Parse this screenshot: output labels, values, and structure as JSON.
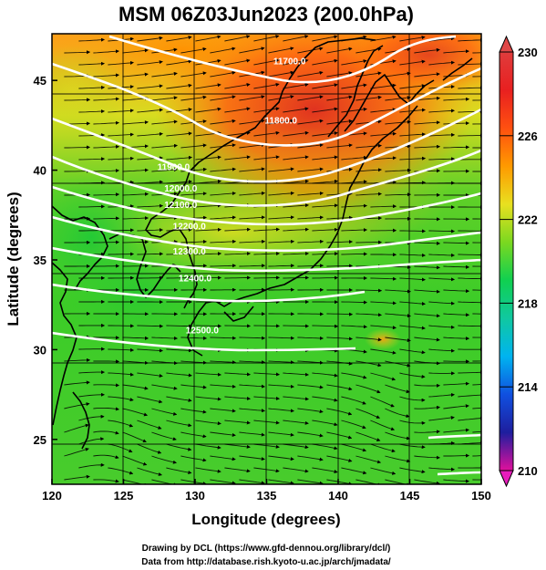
{
  "title": "MSM 06Z03Jun2023 (200.0hPa)",
  "xlabel": "Longitude (degrees)",
  "ylabel": "Latitude  (degrees)",
  "credit_line1": "Drawing by DCL (https://www.gfd-dennou.org/library/dcl/)",
  "credit_line2": "Data from http://database.rish.kyoto-u.ac.jp/arch/jmadata/",
  "x_ticks": [
    {
      "value": 120,
      "label": "120"
    },
    {
      "value": 125,
      "label": "125"
    },
    {
      "value": 130,
      "label": "130"
    },
    {
      "value": 135,
      "label": "135"
    },
    {
      "value": 140,
      "label": "140"
    },
    {
      "value": 145,
      "label": "145"
    },
    {
      "value": 150,
      "label": "150"
    }
  ],
  "y_ticks": [
    {
      "value": 25,
      "label": "25"
    },
    {
      "value": 30,
      "label": "30"
    },
    {
      "value": 35,
      "label": "35"
    },
    {
      "value": 40,
      "label": "40"
    },
    {
      "value": 45,
      "label": "45"
    }
  ],
  "colorbar": {
    "range": [
      210,
      230
    ],
    "ticks": [
      {
        "value": 230,
        "label": "230"
      },
      {
        "value": 226,
        "label": "226"
      },
      {
        "value": 222,
        "label": "222"
      },
      {
        "value": 218,
        "label": "218"
      },
      {
        "value": 214,
        "label": "214"
      },
      {
        "value": 210,
        "label": "210"
      }
    ],
    "stops": [
      "#e0109c",
      "#1e1e9e",
      "#1050e0",
      "#00b4f0",
      "#10c8a0",
      "#10d050",
      "#7ad820",
      "#e8e020",
      "#ff9a00",
      "#ff5010",
      "#e82020",
      "#e03c3c"
    ]
  },
  "contour_labels": [
    {
      "text": "11700.0",
      "lon": 136.6,
      "lat": 45.9
    },
    {
      "text": "11800.0",
      "lon": 136.0,
      "lat": 42.6
    },
    {
      "text": "11900.0",
      "lon": 128.5,
      "lat": 40.0
    },
    {
      "text": "12000.0",
      "lon": 129.0,
      "lat": 38.8
    },
    {
      "text": "12100.0",
      "lon": 129.0,
      "lat": 37.9
    },
    {
      "text": "12200.0",
      "lon": 129.6,
      "lat": 36.7
    },
    {
      "text": "12300.0",
      "lon": 129.6,
      "lat": 35.3
    },
    {
      "text": "12400.0",
      "lon": 130.0,
      "lat": 33.8
    },
    {
      "text": "12500.0",
      "lon": 130.5,
      "lat": 30.9
    }
  ],
  "chart_data": {
    "type": "map",
    "field": "temperature shaded (colorbar 210-230), geopotential height contours (white), streamlines",
    "xlim": [
      120,
      150
    ],
    "ylim": [
      22.5,
      47.6
    ],
    "contour_levels": [
      11700,
      11800,
      11900,
      12000,
      12100,
      12200,
      12300,
      12400,
      12500
    ],
    "colorbar_range": [
      210,
      230
    ]
  }
}
